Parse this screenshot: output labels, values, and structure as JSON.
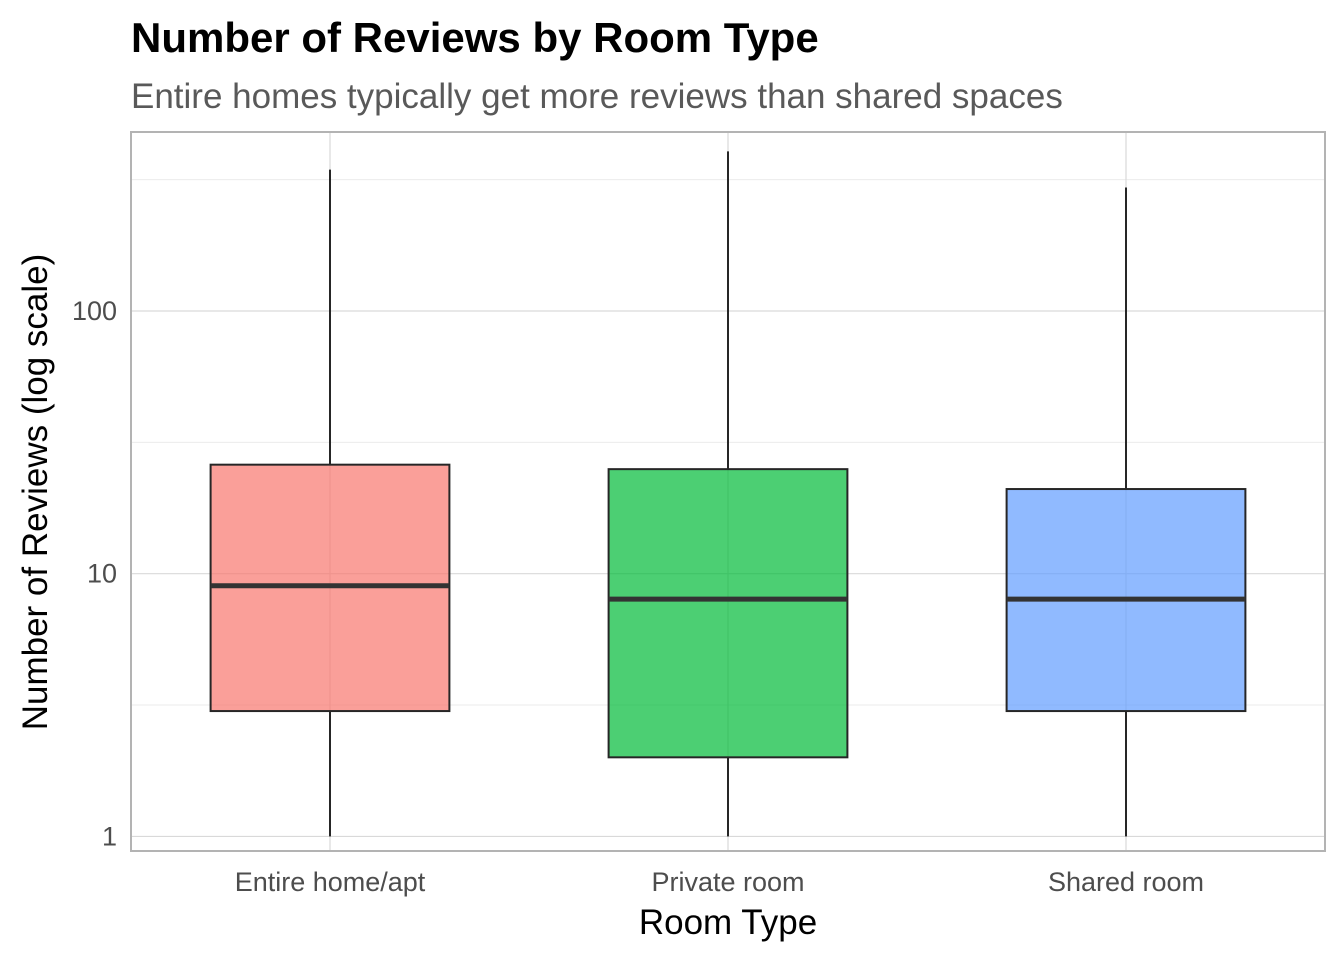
{
  "chart_data": {
    "type": "box",
    "title": "Number of Reviews by Room Type",
    "subtitle": "Entire homes typically get more reviews than shared spaces",
    "xlabel": "Room Type",
    "ylabel": "Number of Reviews (log scale)",
    "y_scale": "log10",
    "ylim": [
      0.88,
      480
    ],
    "y_ticks": [
      1,
      10,
      100
    ],
    "y_tick_labels": [
      "1",
      "10",
      "100"
    ],
    "grid": true,
    "legend": "none",
    "categories": [
      "Entire home/apt",
      "Private room",
      "Shared room"
    ],
    "boxes": [
      {
        "category": "Entire home/apt",
        "min": 1,
        "q1": 3,
        "median": 9,
        "q3": 26,
        "max": 345,
        "color": "#F8766D"
      },
      {
        "category": "Private room",
        "min": 1,
        "q1": 2,
        "median": 8,
        "q3": 25,
        "max": 405,
        "color": "#00BA38"
      },
      {
        "category": "Shared room",
        "min": 1,
        "q1": 3,
        "median": 8,
        "q3": 21,
        "max": 295,
        "color": "#619CFF"
      }
    ]
  }
}
